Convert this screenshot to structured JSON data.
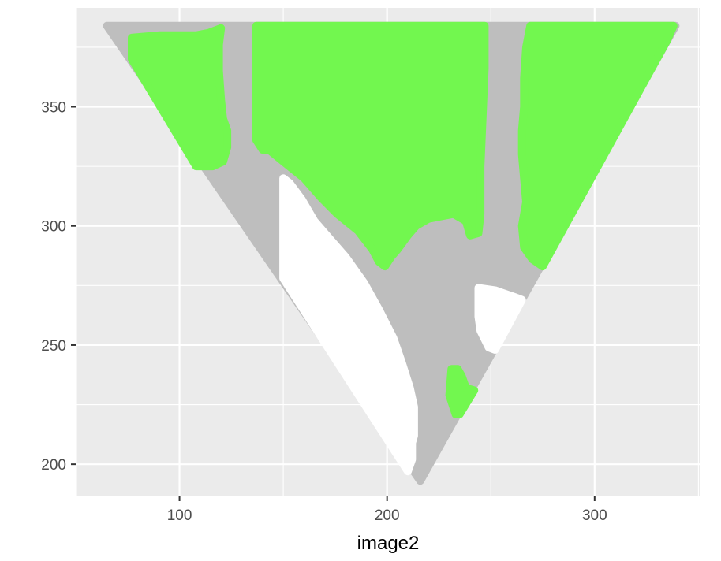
{
  "chart_data": {
    "type": "area",
    "xlabel": "image2",
    "ylabel": "",
    "title": "",
    "xlim": [
      50,
      351
    ],
    "ylim": [
      186.5,
      391.5
    ],
    "x_ticks": [
      100,
      200,
      300
    ],
    "x_minor": [
      50,
      150,
      250,
      350
    ],
    "y_ticks": [
      200,
      250,
      300,
      350
    ],
    "y_minor": [
      225,
      275,
      325,
      375
    ],
    "grid": true,
    "legend": "none",
    "colors": {
      "panel": "#ebebeb",
      "grid": "#ffffff",
      "gray_region": "#bebebe",
      "green_region": "#72f74f",
      "white_region": "#ffffff"
    },
    "regions": [
      {
        "class": "gray",
        "points": [
          [
            65,
            384
          ],
          [
            339,
            384
          ],
          [
            216,
            193
          ]
        ]
      },
      {
        "class": "green",
        "points": [
          [
            77,
            379
          ],
          [
            90,
            380
          ],
          [
            108,
            380
          ],
          [
            114,
            381
          ],
          [
            120,
            383
          ],
          [
            119,
            376
          ],
          [
            119,
            365
          ],
          [
            120,
            353
          ],
          [
            121,
            345
          ],
          [
            123,
            340
          ],
          [
            123,
            333
          ],
          [
            121,
            327
          ],
          [
            116,
            325
          ],
          [
            108,
            325
          ],
          [
            77,
            370
          ]
        ]
      },
      {
        "class": "green",
        "points": [
          [
            137,
            384
          ],
          [
            247,
            384
          ],
          [
            247,
            366
          ],
          [
            246,
            345
          ],
          [
            245,
            325
          ],
          [
            245,
            305
          ],
          [
            244,
            297
          ],
          [
            240,
            296
          ],
          [
            238,
            302
          ],
          [
            232,
            305
          ],
          [
            226,
            304
          ],
          [
            220,
            303
          ],
          [
            214,
            300
          ],
          [
            210,
            296
          ],
          [
            205,
            290
          ],
          [
            202,
            287
          ],
          [
            199,
            283
          ],
          [
            196,
            285
          ],
          [
            193,
            290
          ],
          [
            186,
            298
          ],
          [
            176,
            305
          ],
          [
            168,
            312
          ],
          [
            160,
            320
          ],
          [
            150,
            327
          ],
          [
            143,
            332
          ],
          [
            140,
            332
          ],
          [
            137,
            336
          ],
          [
            137,
            360
          ]
        ]
      },
      {
        "class": "green",
        "points": [
          [
            269,
            384
          ],
          [
            338,
            384
          ],
          [
            335,
            378
          ],
          [
            275,
            283
          ],
          [
            270,
            286
          ],
          [
            266,
            291
          ],
          [
            265,
            300
          ],
          [
            267,
            310
          ],
          [
            266,
            320
          ],
          [
            265,
            330
          ],
          [
            265,
            340
          ],
          [
            266,
            350
          ],
          [
            266,
            362
          ],
          [
            267,
            375
          ]
        ]
      },
      {
        "class": "green",
        "points": [
          [
            231,
            240
          ],
          [
            234,
            240
          ],
          [
            236,
            237
          ],
          [
            238,
            232
          ],
          [
            242,
            231
          ],
          [
            235,
            221
          ],
          [
            233,
            221
          ],
          [
            230,
            229
          ]
        ]
      },
      {
        "class": "white",
        "points": [
          [
            150,
            320
          ],
          [
            153,
            318
          ],
          [
            159,
            311
          ],
          [
            165,
            302
          ],
          [
            172,
            295
          ],
          [
            180,
            287
          ],
          [
            189,
            276
          ],
          [
            196,
            265
          ],
          [
            203,
            253
          ],
          [
            207,
            243
          ],
          [
            211,
            232
          ],
          [
            213,
            224
          ],
          [
            213,
            212
          ],
          [
            212,
            209
          ],
          [
            212,
            202
          ],
          [
            210,
            197
          ],
          [
            150,
            278
          ]
        ]
      },
      {
        "class": "white",
        "points": [
          [
            244,
            274
          ],
          [
            252,
            273
          ],
          [
            262,
            270
          ],
          [
            265,
            269
          ],
          [
            252,
            248
          ],
          [
            249,
            249
          ],
          [
            245,
            256
          ],
          [
            244,
            262
          ]
        ]
      }
    ]
  }
}
